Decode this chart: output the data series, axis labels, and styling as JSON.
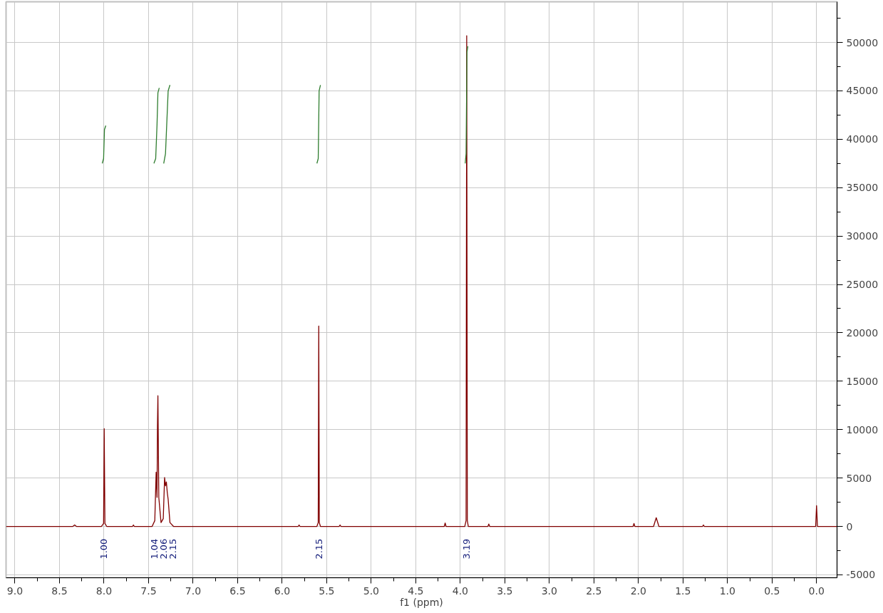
{
  "chart_data": {
    "type": "line",
    "xlabel": "f1 (ppm)",
    "xlim": [
      9.1,
      -0.23
    ],
    "ylim": [
      -5300,
      54200
    ],
    "xticks": [
      {
        "value": 9.0,
        "label": "9.0"
      },
      {
        "value": 8.75,
        "label": null
      },
      {
        "value": 8.5,
        "label": "8.5"
      },
      {
        "value": 8.25,
        "label": null
      },
      {
        "value": 8.0,
        "label": "8.0"
      },
      {
        "value": 7.75,
        "label": null
      },
      {
        "value": 7.5,
        "label": "7.5"
      },
      {
        "value": 7.25,
        "label": null
      },
      {
        "value": 7.0,
        "label": "7.0"
      },
      {
        "value": 6.75,
        "label": null
      },
      {
        "value": 6.5,
        "label": "6.5"
      },
      {
        "value": 6.25,
        "label": null
      },
      {
        "value": 6.0,
        "label": "6.0"
      },
      {
        "value": 5.75,
        "label": null
      },
      {
        "value": 5.5,
        "label": "5.5"
      },
      {
        "value": 5.25,
        "label": null
      },
      {
        "value": 5.0,
        "label": "5.0"
      },
      {
        "value": 4.75,
        "label": null
      },
      {
        "value": 4.5,
        "label": "4.5"
      },
      {
        "value": 4.25,
        "label": null
      },
      {
        "value": 4.0,
        "label": "4.0"
      },
      {
        "value": 3.75,
        "label": null
      },
      {
        "value": 3.5,
        "label": "3.5"
      },
      {
        "value": 3.25,
        "label": null
      },
      {
        "value": 3.0,
        "label": "3.0"
      },
      {
        "value": 2.75,
        "label": null
      },
      {
        "value": 2.5,
        "label": "2.5"
      },
      {
        "value": 2.25,
        "label": null
      },
      {
        "value": 2.0,
        "label": "2.0"
      },
      {
        "value": 1.75,
        "label": null
      },
      {
        "value": 1.5,
        "label": "1.5"
      },
      {
        "value": 1.25,
        "label": null
      },
      {
        "value": 1.0,
        "label": "1.0"
      },
      {
        "value": 0.75,
        "label": null
      },
      {
        "value": 0.5,
        "label": "0.5"
      },
      {
        "value": 0.25,
        "label": null
      },
      {
        "value": 0.0,
        "label": "0.0"
      }
    ],
    "yticks": [
      -5000,
      {
        "value": -2500,
        "label": null
      },
      0,
      {
        "value": 2500,
        "label": null
      },
      5000,
      {
        "value": 7500,
        "label": null
      },
      10000,
      {
        "value": 12500,
        "label": null
      },
      15000,
      {
        "value": 17500,
        "label": null
      },
      20000,
      {
        "value": 22500,
        "label": null
      },
      25000,
      {
        "value": 27500,
        "label": null
      },
      30000,
      {
        "value": 32500,
        "label": null
      },
      35000,
      {
        "value": 37500,
        "label": null
      },
      40000,
      {
        "value": 42500,
        "label": null
      },
      45000,
      {
        "value": 47500,
        "label": null
      },
      50000,
      {
        "value": 52500,
        "label": null
      }
    ],
    "grid": true,
    "marker": "none",
    "line_style": "solid",
    "series": [
      {
        "color": "#800000",
        "x": [
          9.1,
          8.35,
          8.33,
          8.31,
          8.03,
          8.005,
          7.998,
          7.99,
          7.97,
          7.68,
          7.67,
          7.66,
          7.46,
          7.43,
          7.415,
          7.405,
          7.4,
          7.395,
          7.385,
          7.36,
          7.335,
          7.32,
          7.31,
          7.3,
          7.29,
          7.28,
          7.26,
          7.22,
          5.82,
          5.81,
          5.8,
          5.61,
          5.595,
          5.589,
          5.583,
          5.57,
          5.36,
          5.35,
          5.34,
          4.18,
          4.17,
          4.16,
          3.95,
          3.935,
          3.928,
          3.921,
          3.91,
          3.69,
          3.68,
          3.67,
          2.06,
          2.05,
          2.04,
          1.83,
          1.8,
          1.77,
          1.28,
          1.27,
          1.26,
          0.01,
          0.0,
          -0.01,
          -0.23
        ],
        "values": [
          0,
          0,
          150,
          0,
          0,
          300,
          10100,
          300,
          0,
          0,
          150,
          0,
          0,
          600,
          5600,
          3000,
          10400,
          13500,
          3000,
          400,
          800,
          5050,
          4200,
          4600,
          3500,
          2800,
          400,
          0,
          0,
          150,
          0,
          0,
          400,
          20700,
          400,
          0,
          0,
          150,
          0,
          0,
          350,
          0,
          0,
          600,
          50700,
          600,
          0,
          0,
          250,
          0,
          0,
          300,
          0,
          0,
          900,
          0,
          0,
          150,
          0,
          0,
          2150,
          0,
          0
        ]
      },
      {
        "color": "#2e7d2e",
        "x": [
          8.02,
          8.005,
          7.995,
          7.98
        ],
        "values": [
          37500,
          38000,
          41000,
          41400
        ]
      },
      {
        "color": "#2e7d2e",
        "x": [
          7.44,
          7.42,
          7.405,
          7.395,
          7.38
        ],
        "values": [
          37500,
          38000,
          41500,
          44800,
          45300
        ]
      },
      {
        "color": "#2e7d2e",
        "x": [
          7.33,
          7.31,
          7.28,
          7.26
        ],
        "values": [
          37500,
          38500,
          45000,
          45600
        ]
      },
      {
        "color": "#2e7d2e",
        "x": [
          5.61,
          5.595,
          5.585,
          5.57
        ],
        "values": [
          37500,
          38000,
          45000,
          45600
        ]
      },
      {
        "color": "#2e7d2e",
        "x": [
          3.945,
          3.935,
          3.925,
          3.915
        ],
        "values": [
          37500,
          38500,
          49000,
          49600
        ]
      }
    ],
    "annotations": [
      "1.00",
      "1.04",
      "2.06",
      "2.15",
      "2.15",
      "3.19"
    ]
  }
}
